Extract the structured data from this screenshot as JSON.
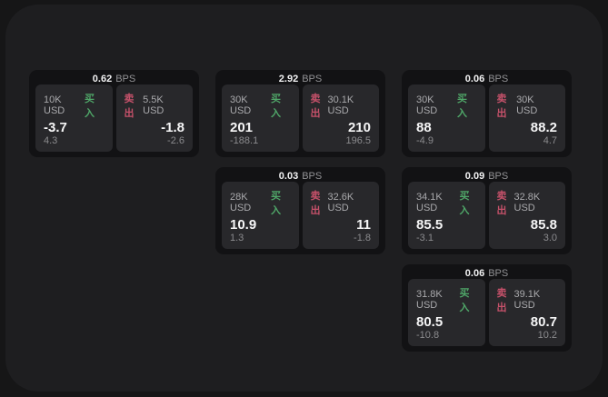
{
  "colors": {
    "buy_green": "#4fa668",
    "sell_red": "#c5516a",
    "panel_bg": "#1e1e20",
    "card_bg": "#121214",
    "tile_bg": "#28282b"
  },
  "labels": {
    "buy": "买入",
    "sell": "卖出",
    "bps_unit": "BPS"
  },
  "cards": [
    {
      "bps": "0.62",
      "buy": {
        "amount": "10K USD",
        "price": "-3.7",
        "delta": "4.3"
      },
      "sell": {
        "amount": "5.5K USD",
        "price": "-1.8",
        "delta": "-2.6"
      }
    },
    {
      "bps": "2.92",
      "buy": {
        "amount": "30K USD",
        "price": "201",
        "delta": "-188.1"
      },
      "sell": {
        "amount": "30.1K USD",
        "price": "210",
        "delta": "196.5"
      }
    },
    {
      "bps": "0.06",
      "buy": {
        "amount": "30K USD",
        "price": "88",
        "delta": "-4.9"
      },
      "sell": {
        "amount": "30K USD",
        "price": "88.2",
        "delta": "4.7"
      }
    },
    {
      "bps": "0.03",
      "buy": {
        "amount": "28K USD",
        "price": "10.9",
        "delta": "1.3"
      },
      "sell": {
        "amount": "32.6K USD",
        "price": "11",
        "delta": "-1.8"
      }
    },
    {
      "bps": "0.09",
      "buy": {
        "amount": "34.1K USD",
        "price": "85.5",
        "delta": "-3.1"
      },
      "sell": {
        "amount": "32.8K USD",
        "price": "85.8",
        "delta": "3.0"
      }
    },
    {
      "bps": "0.06",
      "buy": {
        "amount": "31.8K USD",
        "price": "80.5",
        "delta": "-10.8"
      },
      "sell": {
        "amount": "39.1K USD",
        "price": "80.7",
        "delta": "10.2"
      }
    }
  ]
}
